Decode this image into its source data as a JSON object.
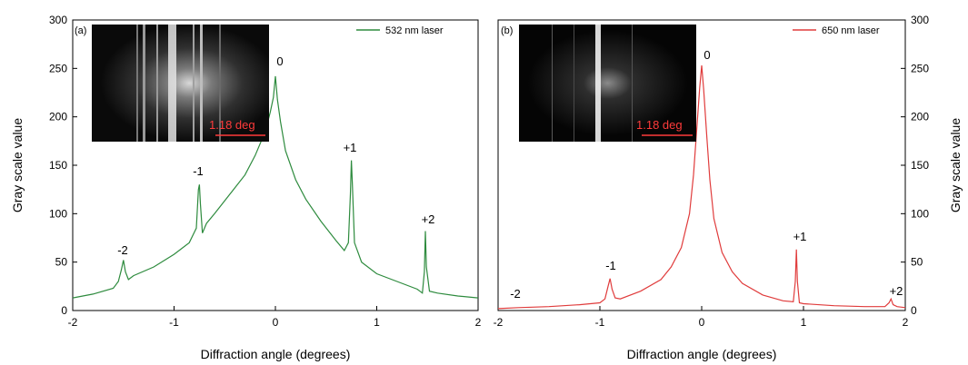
{
  "chart_data": [
    {
      "type": "line",
      "panel_label": "(a)",
      "xlabel": "Diffraction angle (degrees)",
      "ylabel": "Gray scale value",
      "xlim": [
        -2,
        2
      ],
      "ylim": [
        0,
        300
      ],
      "x_ticks": [
        -2,
        -1,
        0,
        1,
        2
      ],
      "y_ticks": [
        0,
        50,
        100,
        150,
        200,
        250,
        300
      ],
      "x_tick_labels": [
        "-2",
        "-1",
        "0",
        "1",
        "2"
      ],
      "y_tick_labels": [
        "0",
        "50",
        "100",
        "150",
        "200",
        "250",
        "300"
      ],
      "y_axis_side": "left",
      "grid": false,
      "legend": {
        "position": "top-right",
        "entries": [
          "532 nm laser"
        ]
      },
      "series": [
        {
          "name": "532 nm laser",
          "color": "#2e8b3e",
          "x": [
            -2.0,
            -1.8,
            -1.6,
            -1.55,
            -1.52,
            -1.5,
            -1.48,
            -1.45,
            -1.4,
            -1.2,
            -1.0,
            -0.85,
            -0.78,
            -0.76,
            -0.75,
            -0.74,
            -0.72,
            -0.68,
            -0.6,
            -0.45,
            -0.3,
            -0.2,
            -0.1,
            -0.05,
            -0.02,
            0.0,
            0.02,
            0.05,
            0.1,
            0.2,
            0.3,
            0.45,
            0.6,
            0.68,
            0.72,
            0.74,
            0.75,
            0.76,
            0.78,
            0.85,
            1.0,
            1.2,
            1.4,
            1.45,
            1.47,
            1.48,
            1.49,
            1.52,
            1.6,
            1.8,
            2.0
          ],
          "y": [
            13,
            17,
            23,
            30,
            42,
            52,
            40,
            32,
            36,
            45,
            58,
            70,
            85,
            125,
            130,
            110,
            80,
            90,
            100,
            120,
            140,
            160,
            185,
            205,
            220,
            242,
            218,
            195,
            165,
            135,
            115,
            92,
            72,
            62,
            70,
            120,
            155,
            130,
            70,
            50,
            38,
            30,
            22,
            18,
            40,
            82,
            45,
            20,
            18,
            15,
            13
          ]
        }
      ],
      "annotations": [
        "-2",
        "-1",
        "0",
        "+1",
        "+2"
      ],
      "inset": {
        "scale_label": "1.18 deg"
      }
    },
    {
      "type": "line",
      "panel_label": "(b)",
      "xlabel": "Diffraction angle (degrees)",
      "ylabel": "Gray scale value",
      "xlim": [
        -2,
        2
      ],
      "ylim": [
        0,
        300
      ],
      "x_ticks": [
        -2,
        -1,
        0,
        1,
        2
      ],
      "y_ticks": [
        0,
        50,
        100,
        150,
        200,
        250,
        300
      ],
      "x_tick_labels": [
        "-2",
        "-1",
        "0",
        "1",
        "2"
      ],
      "y_tick_labels": [
        "0",
        "50",
        "100",
        "150",
        "200",
        "250",
        "300"
      ],
      "y_axis_side": "right",
      "grid": false,
      "legend": {
        "position": "top-right",
        "entries": [
          "650 nm laser"
        ]
      },
      "series": [
        {
          "name": "650 nm laser",
          "color": "#e03c3c",
          "x": [
            -2.0,
            -1.8,
            -1.5,
            -1.2,
            -1.0,
            -0.95,
            -0.92,
            -0.9,
            -0.88,
            -0.85,
            -0.8,
            -0.6,
            -0.4,
            -0.3,
            -0.2,
            -0.12,
            -0.08,
            -0.05,
            -0.02,
            0.0,
            0.02,
            0.05,
            0.08,
            0.12,
            0.2,
            0.3,
            0.4,
            0.6,
            0.8,
            0.9,
            0.92,
            0.93,
            0.94,
            0.96,
            1.0,
            1.3,
            1.6,
            1.8,
            1.84,
            1.86,
            1.88,
            1.92,
            2.0
          ],
          "y": [
            2,
            3,
            4,
            6,
            8,
            12,
            25,
            33,
            22,
            13,
            12,
            20,
            32,
            45,
            65,
            100,
            140,
            185,
            230,
            253,
            228,
            180,
            135,
            95,
            60,
            40,
            28,
            16,
            10,
            9,
            30,
            63,
            30,
            8,
            7,
            5,
            4,
            4,
            8,
            12,
            6,
            4,
            3
          ]
        }
      ],
      "annotations": [
        "-2",
        "-1",
        "0",
        "+1",
        "+2"
      ],
      "inset": {
        "scale_label": "1.18 deg"
      }
    }
  ]
}
